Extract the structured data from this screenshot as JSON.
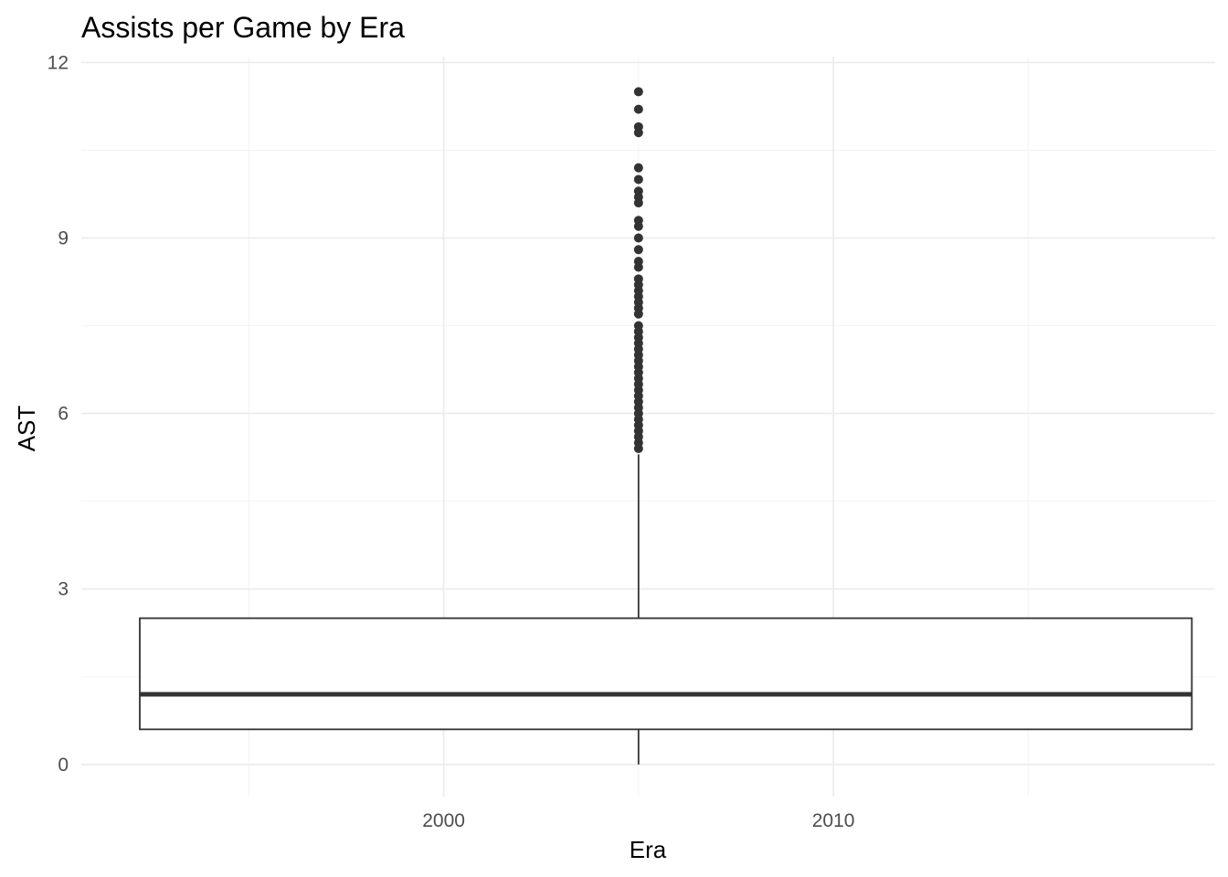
{
  "chart_data": {
    "type": "boxplot",
    "title": "Assists per Game by Era",
    "xlabel": "Era",
    "ylabel": "AST",
    "x_ticks": [
      2000,
      2010
    ],
    "y_ticks": [
      0,
      3,
      6,
      9,
      12
    ],
    "xlim": [
      1990.7,
      2019.8
    ],
    "ylim": [
      -0.55,
      12.1
    ],
    "grid": true,
    "legend": "none",
    "colors": {
      "box": "#333333",
      "points": "#333333",
      "grid": "#ebebeb",
      "background": "#ffffff"
    },
    "box": {
      "x_center": 2005,
      "x_range": [
        1992.2,
        2019.2
      ],
      "min": 0,
      "q1": 0.6,
      "median": 1.2,
      "q3": 2.5,
      "whisker_high": 5.3
    },
    "outliers": [
      5.4,
      5.5,
      5.6,
      5.7,
      5.8,
      5.9,
      6.0,
      6.1,
      6.2,
      6.3,
      6.4,
      6.5,
      6.6,
      6.7,
      6.8,
      6.9,
      7.0,
      7.1,
      7.2,
      7.3,
      7.4,
      7.5,
      7.7,
      7.8,
      7.9,
      8.0,
      8.1,
      8.2,
      8.3,
      8.5,
      8.6,
      8.8,
      9.0,
      9.2,
      9.3,
      9.6,
      9.7,
      9.8,
      10.0,
      10.2,
      10.8,
      10.9,
      11.2,
      11.5
    ]
  }
}
